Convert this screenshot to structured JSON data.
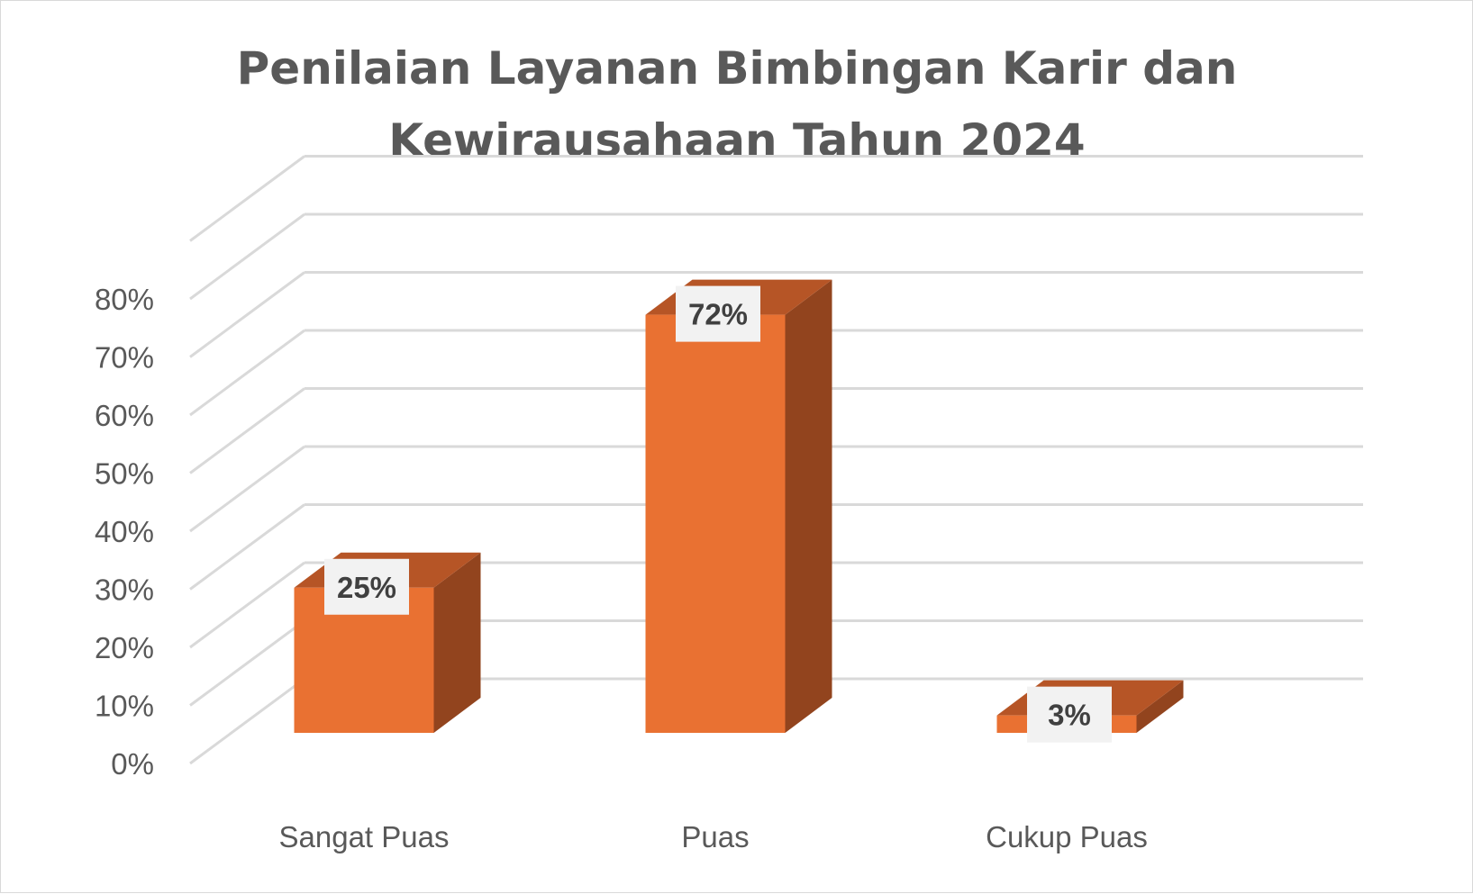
{
  "chart_data": {
    "type": "bar",
    "title_lines": [
      "Penilaian Layanan Bimbingan Karir dan",
      "Kewirausahaan Tahun 2024"
    ],
    "categories": [
      "Sangat Puas",
      "Puas",
      "Cukup Puas"
    ],
    "values": [
      25,
      72,
      3
    ],
    "data_labels": [
      "25%",
      "72%",
      "3%"
    ],
    "y_ticks": [
      "0%",
      "10%",
      "20%",
      "30%",
      "40%",
      "50%",
      "60%",
      "70%",
      "80%"
    ],
    "ylim": [
      0,
      90
    ],
    "grid": true,
    "legend": "none",
    "style": "3d-column",
    "colors": {
      "bar_front": "#E97132",
      "bar_top": "#B65526",
      "bar_side": "#92441E",
      "grid": "#d9d9d9",
      "label_bg": "#f2f2f2"
    }
  }
}
